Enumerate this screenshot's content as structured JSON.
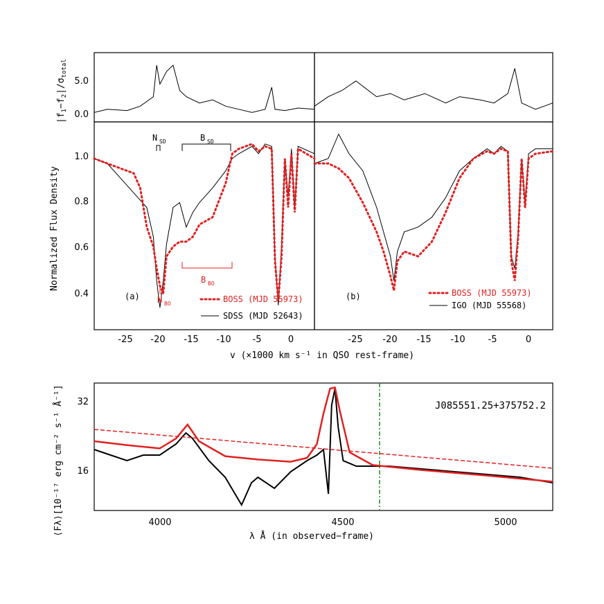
{
  "figure": {
    "top_left": {
      "ylabel_parts": [
        "|f",
        "1",
        "−f",
        "2",
        "|/σ",
        "total"
      ],
      "yticks": [
        "0.0",
        "5.0"
      ]
    },
    "main": {
      "ylabel": "Normalized Flux Density",
      "yticks": [
        "0.4",
        "0.6",
        "0.8",
        "1.0"
      ],
      "xticks": [
        "-25",
        "-20",
        "-15",
        "-10",
        "-5",
        "0"
      ],
      "xlabel": "v (×1000 km s⁻¹ in QSO rest-frame)"
    },
    "panel_a": {
      "tag": "(a)",
      "legend": [
        {
          "label": "BOSS (MJD 55973)",
          "style": "dotted",
          "color": "#e02020"
        },
        {
          "label": "SDSS (MJD 52643)",
          "style": "solid",
          "color": "#000000"
        }
      ],
      "annotations": {
        "nsd": [
          "N",
          "SD"
        ],
        "bsd": [
          "B",
          "SD"
        ],
        "nbo": [
          "N",
          "BO"
        ],
        "bbo": [
          "B",
          "BO"
        ]
      }
    },
    "panel_b": {
      "tag": "(b)",
      "legend": [
        {
          "label": "BOSS (MJD 55973)",
          "style": "dotted",
          "color": "#e02020"
        },
        {
          "label": "IGO (MJD 55568)",
          "style": "solid",
          "color": "#000000"
        }
      ]
    },
    "bottom": {
      "ylabel": "⟨Fλ⟩[10⁻¹⁷ erg cm⁻² s⁻¹ Å⁻¹]",
      "yticks": [
        "16",
        "32"
      ],
      "xticks": [
        "4000",
        "4500",
        "5000"
      ],
      "xlabel": "λ Å (in observed−frame)",
      "object_name": "J085551.25+375752.2"
    }
  },
  "chart_data": [
    {
      "type": "line",
      "panel": "top-left",
      "xlim": [
        -30,
        3.5
      ],
      "ylim": [
        -1,
        10
      ],
      "series": [
        {
          "values_x": [
            -30,
            -28,
            -25,
            -23,
            -21,
            -20.5,
            -20,
            -19,
            -18,
            -17,
            -16,
            -14,
            -12,
            -10,
            -8,
            -6,
            -4,
            -3,
            -2.5,
            -1,
            1,
            3.5
          ],
          "values_y": [
            0.5,
            1.0,
            0.8,
            1.5,
            3.0,
            8.0,
            5.0,
            7.0,
            8.0,
            4.0,
            3.0,
            2.0,
            2.5,
            1.5,
            1.0,
            0.5,
            1.0,
            4.5,
            1.0,
            0.8,
            1.2,
            1.0
          ]
        }
      ]
    },
    {
      "type": "line",
      "panel": "top-right",
      "xlim": [
        -31,
        3.5
      ],
      "ylim": [
        -1,
        10
      ],
      "series": [
        {
          "values_x": [
            -31,
            -29,
            -27,
            -25,
            -22,
            -20,
            -18,
            -15,
            -12,
            -10,
            -7,
            -5,
            -3,
            -2,
            -1,
            1,
            3.5
          ],
          "values_y": [
            1.5,
            3.0,
            4.0,
            5.5,
            3.0,
            3.5,
            2.5,
            3.5,
            2.0,
            3.0,
            2.5,
            2.0,
            3.5,
            7.5,
            2.0,
            1.0,
            2.0
          ]
        }
      ]
    },
    {
      "type": "line",
      "panel": "a",
      "xlim": [
        -30,
        3.5
      ],
      "ylim": [
        0.3,
        1.15
      ],
      "series": [
        {
          "name": "SDSS (MJD 52643)",
          "color": "#000000",
          "style": "solid",
          "values_x": [
            -30,
            -28,
            -26,
            -24,
            -23,
            -22,
            -21,
            -20.5,
            -20,
            -19.5,
            -19,
            -18,
            -17,
            -16,
            -15,
            -14,
            -12,
            -10,
            -9,
            -8,
            -6,
            -5,
            -4,
            -3,
            -2.5,
            -2,
            -1.5,
            -1,
            -0.5,
            0,
            0.5,
            1,
            3.5
          ],
          "values_y": [
            1.0,
            0.98,
            0.92,
            0.86,
            0.83,
            0.8,
            0.68,
            0.5,
            0.39,
            0.5,
            0.65,
            0.8,
            0.82,
            0.72,
            0.78,
            0.82,
            0.88,
            0.95,
            1.0,
            1.02,
            1.05,
            1.02,
            1.06,
            1.05,
            0.6,
            0.4,
            0.65,
            1.0,
            0.85,
            1.04,
            0.8,
            1.05,
            1.02
          ]
        },
        {
          "name": "BOSS (MJD 55973)",
          "color": "#e02020",
          "style": "dotted",
          "values_x": [
            -30,
            -28,
            -26,
            -24,
            -23,
            -22,
            -21,
            -20.5,
            -20,
            -19.5,
            -19,
            -18,
            -17,
            -16,
            -15,
            -14,
            -12,
            -10,
            -9,
            -8,
            -6,
            -5,
            -4,
            -3,
            -2.5,
            -2,
            -1.5,
            -1,
            -0.5,
            0,
            0.5,
            1,
            3.5
          ],
          "values_y": [
            1.0,
            0.98,
            0.96,
            0.94,
            0.88,
            0.72,
            0.64,
            0.55,
            0.48,
            0.45,
            0.6,
            0.64,
            0.66,
            0.66,
            0.68,
            0.73,
            0.76,
            0.9,
            1.02,
            1.04,
            1.06,
            1.03,
            1.05,
            1.04,
            0.58,
            0.42,
            0.6,
            1.0,
            0.8,
            1.02,
            0.78,
            1.04,
            1.0
          ]
        }
      ]
    },
    {
      "type": "line",
      "panel": "b",
      "xlim": [
        -31,
        3.5
      ],
      "ylim": [
        0.3,
        1.15
      ],
      "series": [
        {
          "name": "IGO (MJD 55568)",
          "color": "#000000",
          "style": "solid",
          "values_x": [
            -31,
            -29,
            -27.5,
            -26,
            -24,
            -22,
            -21,
            -20,
            -19.5,
            -19,
            -18,
            -16,
            -14,
            -12,
            -10,
            -8,
            -6,
            -5,
            -4,
            -3,
            -2.5,
            -2,
            -1.5,
            -1,
            -0.5,
            0,
            1,
            3.5
          ],
          "values_y": [
            0.98,
            1.0,
            1.1,
            1.02,
            0.95,
            0.8,
            0.7,
            0.6,
            0.5,
            0.62,
            0.7,
            0.72,
            0.76,
            0.84,
            0.95,
            1.0,
            1.04,
            1.02,
            1.05,
            1.03,
            0.6,
            0.55,
            0.7,
            1.0,
            0.82,
            1.02,
            1.04,
            1.04
          ]
        },
        {
          "name": "BOSS (MJD 55973)",
          "color": "#e02020",
          "style": "dotted",
          "values_x": [
            -31,
            -29,
            -27.5,
            -26,
            -24,
            -22,
            -21,
            -20,
            -19.5,
            -19,
            -18,
            -16,
            -14,
            -12,
            -10,
            -8,
            -6,
            -5,
            -4,
            -3,
            -2.5,
            -2,
            -1.5,
            -1,
            -0.5,
            0,
            1,
            3.5
          ],
          "values_y": [
            0.98,
            0.98,
            0.96,
            0.92,
            0.82,
            0.7,
            0.62,
            0.52,
            0.46,
            0.58,
            0.62,
            0.6,
            0.66,
            0.78,
            0.92,
            1.0,
            1.03,
            1.02,
            1.04,
            1.03,
            0.58,
            0.5,
            0.68,
            1.0,
            0.8,
            1.0,
            1.02,
            1.03
          ]
        }
      ]
    },
    {
      "type": "line",
      "panel": "bottom",
      "xlim": [
        3800,
        5200
      ],
      "ylim": [
        11,
        34
      ],
      "series": [
        {
          "color": "#000000",
          "values_x": [
            3800,
            3850,
            3900,
            3950,
            4000,
            4050,
            4080,
            4100,
            4150,
            4200,
            4230,
            4250,
            4280,
            4300,
            4350,
            4400,
            4450,
            4480,
            4500,
            4515,
            4525,
            4535,
            4545,
            4560,
            4600,
            4650,
            4700,
            4800,
            4900,
            5000,
            5100,
            5150,
            5200
          ],
          "values_y": [
            22,
            21,
            20,
            21,
            21,
            23,
            25,
            24,
            20,
            17,
            14,
            12,
            16,
            17,
            15,
            18,
            20,
            21,
            22,
            14,
            30,
            33,
            26,
            20,
            19,
            19,
            19,
            18.5,
            18,
            17.5,
            17,
            16.5,
            16
          ]
        },
        {
          "color": "#e02020",
          "values_x": [
            3800,
            3900,
            4000,
            4050,
            4085,
            4120,
            4200,
            4300,
            4400,
            4450,
            4480,
            4500,
            4520,
            4535,
            4550,
            4580,
            4650,
            4800,
            5000,
            5200
          ],
          "values_y": [
            23.5,
            22.8,
            22.2,
            24.0,
            26.5,
            23.5,
            20.8,
            20.2,
            19.8,
            20.5,
            23.0,
            28.5,
            33.0,
            33.2,
            29.0,
            21.5,
            19.2,
            18.3,
            17.3,
            16.2
          ]
        }
      ]
    }
  ]
}
